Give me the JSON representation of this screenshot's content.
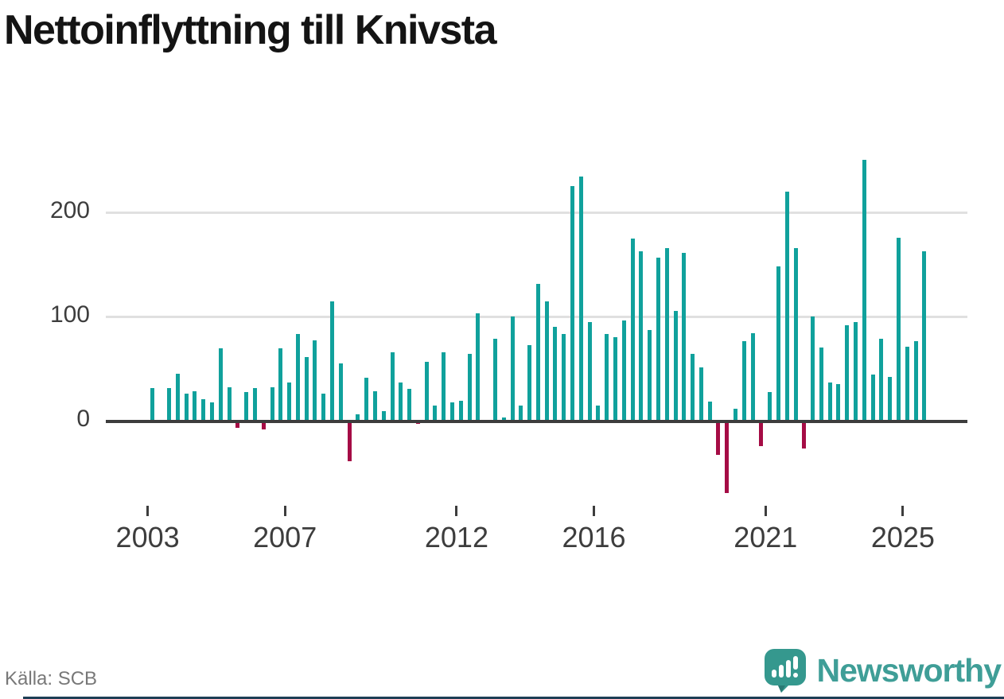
{
  "title": "Nettoinflyttning till Knivsta",
  "source": "Källa: SCB",
  "brand": {
    "name": "Newsworthy"
  },
  "colors": {
    "positive": "#10a19c",
    "negative": "#a50c45",
    "axis": "#3d3d3d",
    "grid": "#e0e0e0",
    "text": "#3d3d3d",
    "title": "#141414",
    "source_text": "#787878",
    "brand_teal": "#3f9e97",
    "logo_teal": "#35988e",
    "footer_bar": "#1d3e55"
  },
  "chart_data": {
    "type": "bar",
    "title": "Nettoinflyttning till Knivsta",
    "frequency": "quarterly",
    "start_year": 2003,
    "start_quarter": 1,
    "end_year": 2025,
    "end_quarter": 3,
    "values": [
      32,
      0,
      32,
      46,
      27,
      29,
      21,
      18,
      70,
      33,
      -6,
      28,
      32,
      -8,
      33,
      70,
      37,
      84,
      62,
      78,
      27,
      115,
      56,
      -38,
      7,
      42,
      29,
      10,
      66,
      37,
      31,
      -2,
      57,
      15,
      66,
      18,
      20,
      65,
      104,
      0,
      79,
      4,
      101,
      15,
      73,
      132,
      115,
      91,
      84,
      226,
      235,
      95,
      15,
      84,
      81,
      97,
      175,
      163,
      88,
      157,
      166,
      106,
      162,
      65,
      52,
      19,
      -32,
      -69,
      12,
      77,
      85,
      -24,
      28,
      149,
      220,
      166,
      -26,
      101,
      71,
      37,
      36,
      92,
      95,
      251,
      45,
      79,
      43,
      176,
      72,
      77,
      163
    ],
    "y_ticks": [
      0,
      100,
      200
    ],
    "x_tick_years": [
      2003,
      2007,
      2012,
      2016,
      2021,
      2025
    ],
    "ylim": [
      -80,
      260
    ],
    "grid": true,
    "legend": "none",
    "xlabel": "",
    "ylabel": ""
  }
}
